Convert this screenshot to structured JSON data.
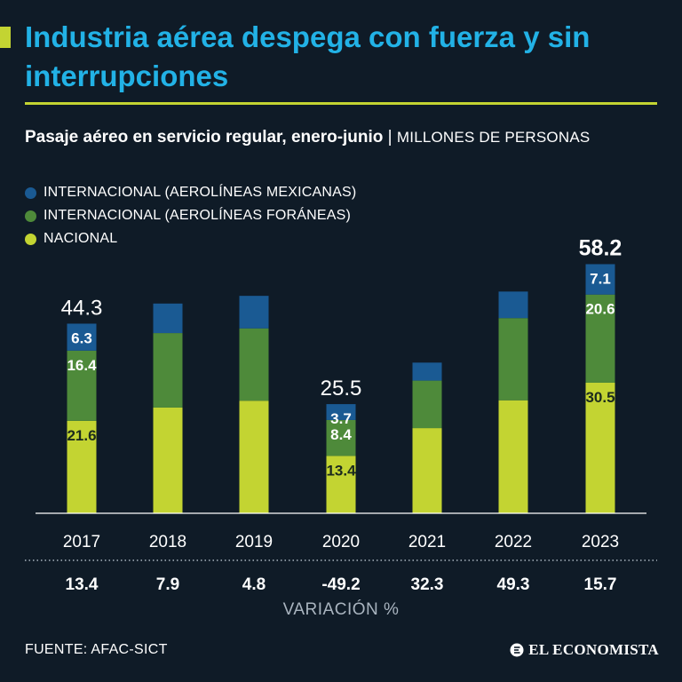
{
  "header": {
    "title": "Industria aérea despega con fuerza y sin interrupciones",
    "subtitle_bold": "Pasaje aéreo en servicio regular, enero-junio",
    "subtitle_sep": " | ",
    "subtitle_units": "MILLONES DE PERSONAS"
  },
  "colors": {
    "background": "#0f1b27",
    "title": "#22b2e6",
    "accent": "#c3d432",
    "internacional_mexicanas": "#1a5a93",
    "internacional_foraneas": "#4e8a3a",
    "nacional": "#c3d432"
  },
  "chart_data": {
    "type": "bar",
    "stacked": true,
    "categories": [
      "2017",
      "2018",
      "2019",
      "2020",
      "2021",
      "2022",
      "2023"
    ],
    "series": [
      {
        "name": "NACIONAL",
        "color": "#c3d432",
        "values": [
          21.6,
          24.7,
          26.3,
          13.4,
          19.9,
          26.4,
          30.5
        ]
      },
      {
        "name": "INTERNACIONAL (AEROLÍNEAS FORÁNEAS)",
        "color": "#4e8a3a",
        "values": [
          16.4,
          17.4,
          16.9,
          8.4,
          11.1,
          19.2,
          20.6
        ]
      },
      {
        "name": "INTERNACIONAL (AEROLÍNEAS MEXICANAS)",
        "color": "#1a5a93",
        "values": [
          6.3,
          6.9,
          7.6,
          3.7,
          4.2,
          6.2,
          7.1
        ]
      }
    ],
    "totals": [
      "44.3",
      null,
      null,
      "25.5",
      null,
      null,
      "58.2"
    ],
    "segment_labels": [
      [
        "21.6",
        "16.4",
        "6.3"
      ],
      [
        null,
        null,
        null
      ],
      [
        null,
        null,
        null
      ],
      [
        "13.4",
        "8.4",
        "3.7"
      ],
      [
        null,
        null,
        null
      ],
      [
        null,
        null,
        null
      ],
      [
        "30.5",
        "20.6",
        "7.1"
      ]
    ],
    "variation": [
      "13.4",
      "7.9",
      "4.8",
      "-49.2",
      "32.3",
      "49.3",
      "15.7"
    ],
    "variation_label": "VARIACIÓN %",
    "ylim": [
      0,
      60
    ],
    "highlight_index": 6
  },
  "footer": {
    "source": "FUENTE: AFAC-SICT",
    "brand": "EL ECONOMISTA"
  }
}
